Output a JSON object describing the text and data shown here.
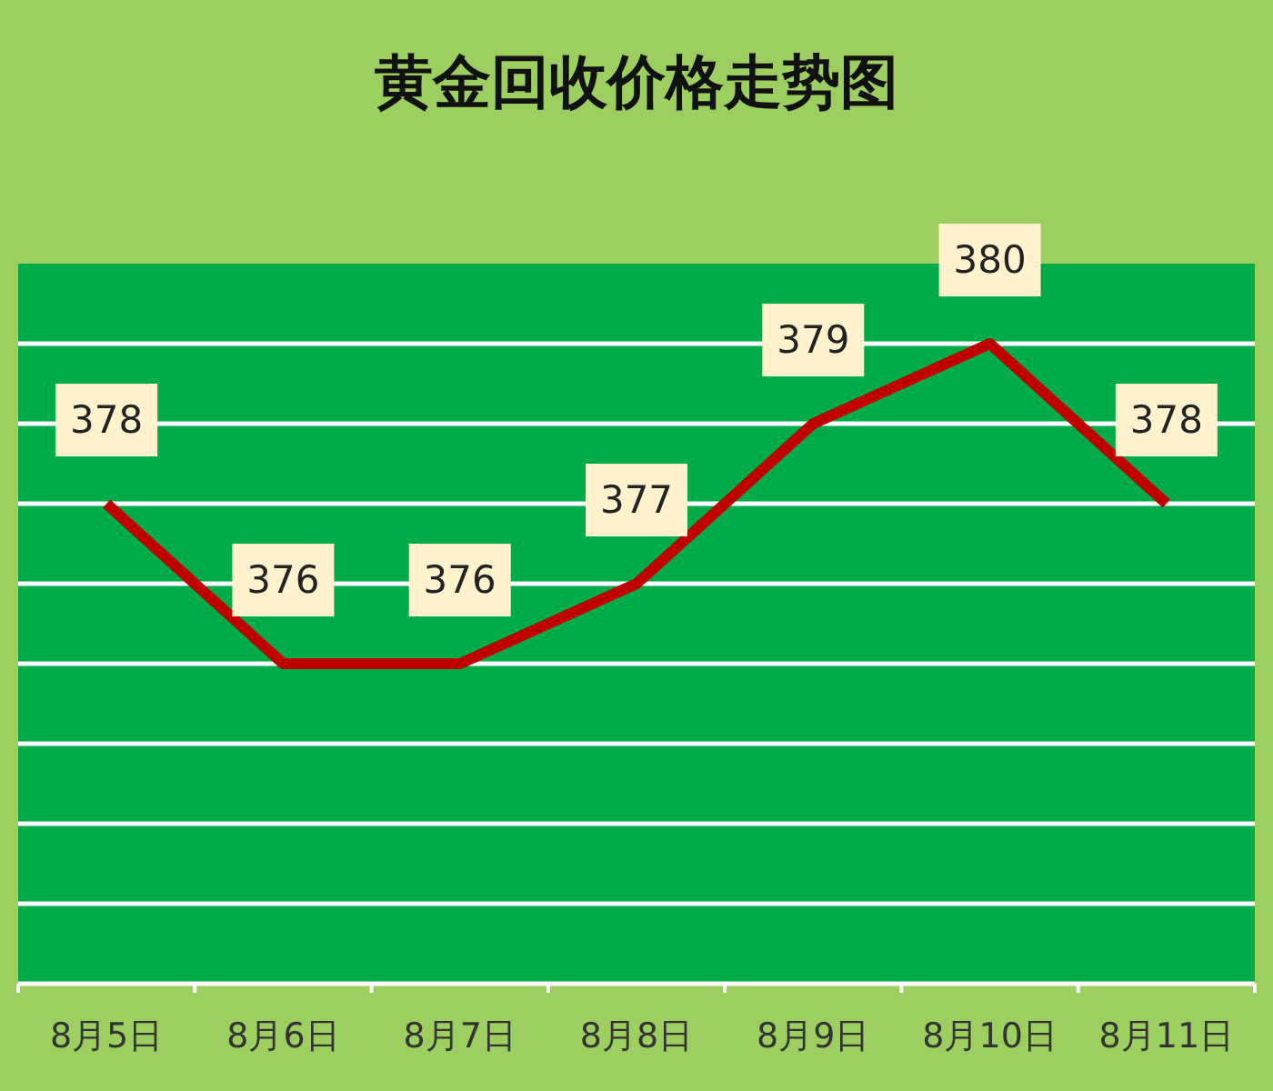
{
  "chart_data": {
    "type": "line",
    "title": "黄金回收价格走势图",
    "categories": [
      "8月5日",
      "8月6日",
      "8月7日",
      "8月8日",
      "8月9日",
      "8月10日",
      "8月11日"
    ],
    "series": [
      {
        "color": "#c00000",
        "values": [
          378,
          376,
          376,
          377,
          379,
          380,
          378
        ]
      }
    ],
    "ylim": [
      372,
      381
    ],
    "yticks": [
      {
        "value": 372,
        "label": null
      },
      {
        "value": 373,
        "label": null
      },
      {
        "value": 374,
        "label": null
      },
      {
        "value": 375,
        "label": null
      },
      {
        "value": 376,
        "label": null
      },
      {
        "value": 377,
        "label": null
      },
      {
        "value": 378,
        "label": null
      },
      {
        "value": 379,
        "label": null
      },
      {
        "value": 380,
        "label": null
      }
    ],
    "grid": "y",
    "data_labels": true,
    "marker": "none",
    "line_style": "solid",
    "tick_labels": "x"
  }
}
